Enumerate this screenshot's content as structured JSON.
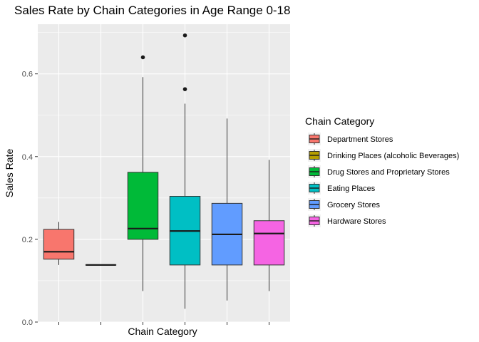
{
  "chart_data": {
    "type": "boxplot",
    "title": "Sales Rate by Chain Categories in Age Range 0-18",
    "xlabel": "Chain Category",
    "ylabel": "Sales Rate",
    "ylim": [
      0,
      0.72
    ],
    "yticks": [
      0.0,
      0.2,
      0.4,
      0.6
    ],
    "ytick_labels": [
      "0.0",
      "0.2",
      "0.4",
      "0.6"
    ],
    "grid": true,
    "legend_title": "Chain Category",
    "legend_position": "right",
    "series": [
      {
        "name": "Department Stores",
        "color": "#F8766D",
        "whisker_low": 0.138,
        "q1": 0.152,
        "median": 0.17,
        "q3": 0.224,
        "whisker_high": 0.242,
        "outliers": []
      },
      {
        "name": "Drinking Places (alcoholic Beverages)",
        "color": "#B79F00",
        "whisker_low": 0.138,
        "q1": 0.138,
        "median": 0.138,
        "q3": 0.138,
        "whisker_high": 0.138,
        "outliers": []
      },
      {
        "name": "Drug Stores and Proprietary Stores",
        "color": "#00BA38",
        "whisker_low": 0.075,
        "q1": 0.2,
        "median": 0.226,
        "q3": 0.362,
        "whisker_high": 0.592,
        "outliers": [
          0.64
        ]
      },
      {
        "name": "Eating Places",
        "color": "#00BFC4",
        "whisker_low": 0.032,
        "q1": 0.138,
        "median": 0.22,
        "q3": 0.304,
        "whisker_high": 0.528,
        "outliers": [
          0.563,
          0.693
        ]
      },
      {
        "name": "Grocery Stores",
        "color": "#619CFF",
        "whisker_low": 0.052,
        "q1": 0.138,
        "median": 0.212,
        "q3": 0.287,
        "whisker_high": 0.492,
        "outliers": []
      },
      {
        "name": "Hardware Stores",
        "color": "#F564E3",
        "whisker_low": 0.075,
        "q1": 0.138,
        "median": 0.214,
        "q3": 0.245,
        "whisker_high": 0.392,
        "outliers": []
      }
    ]
  }
}
